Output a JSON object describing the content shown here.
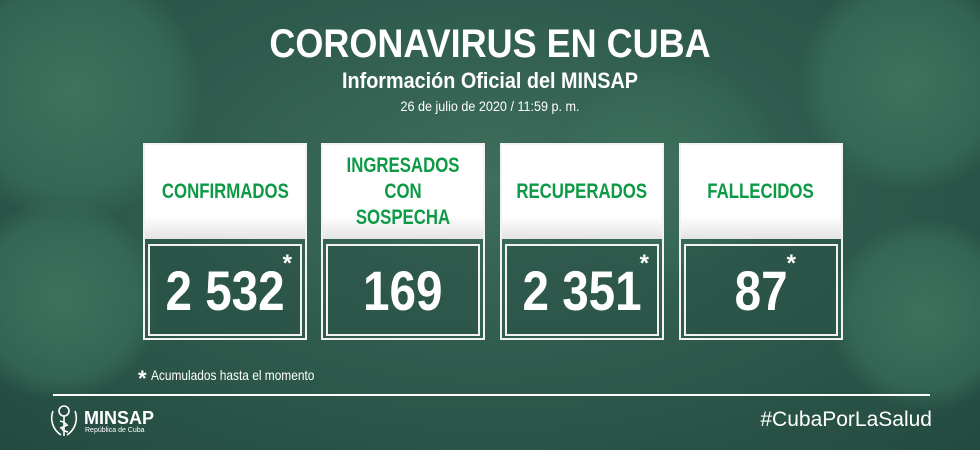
{
  "header": {
    "title": "CORONAVIRUS EN CUBA",
    "subtitle": "Información Oficial del MINSAP",
    "date": "26 de julio de 2020 / 11:59 p. m."
  },
  "cards": [
    {
      "label": "CONFIRMADOS",
      "value": "2 532",
      "asterisk": "*"
    },
    {
      "label": "INGRESADOS CON SOSPECHA",
      "value": "169",
      "asterisk": ""
    },
    {
      "label": "RECUPERADOS",
      "value": "2 351",
      "asterisk": "*"
    },
    {
      "label": "FALLECIDOS",
      "value": "87",
      "asterisk": "*"
    }
  ],
  "footnote": {
    "asterisk": "*",
    "text": "Acumulados hasta el momento"
  },
  "footer": {
    "logo_name": "MINSAP",
    "logo_sub": "República de Cuba",
    "hashtag": "#CubaPorLaSalud"
  },
  "colors": {
    "accent_green": "#0c9a45",
    "background": "#2f5c4e"
  }
}
